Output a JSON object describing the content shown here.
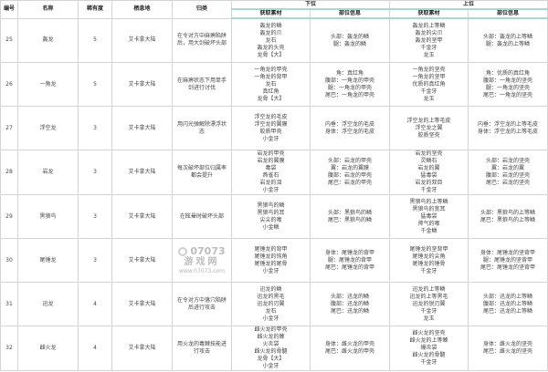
{
  "headers": {
    "id": "编号",
    "name": "名称",
    "rarity": "稀有度",
    "habitat": "栖息地",
    "capture": "归类",
    "low_rank": "下位",
    "high_rank": "上位",
    "materials": "获取素材",
    "parts": "部位信息"
  },
  "rows": [
    {
      "id": "25",
      "name": "轰龙",
      "rarity": "5",
      "habitat": "艾卡拿大陆",
      "note": "在令对方中麻痹陷阱后，用大剑破坏头部",
      "low_materials": [
        "轰龙的鳞",
        "轰龙的爪",
        "龙石",
        "轰龙的头壳",
        "龙骨【大】"
      ],
      "low_parts": [
        "头部：轰龙的鳞",
        "腿：轰龙的鳞"
      ],
      "high_materials": [
        "轰龙的上等鳞",
        "轰龙的尖爪",
        "轰龙的坚甲",
        "千金牙",
        "龙玉"
      ],
      "high_parts": [
        "头部：轰龙的上等鳞",
        "腿：轰龙的上等鳞"
      ]
    },
    {
      "id": "26",
      "name": "一角龙",
      "rarity": "5",
      "habitat": "艾卡拿大陆",
      "note": "在麻痹状态下用单手剑进行讨伐",
      "low_materials": [
        "一角龙的甲壳",
        "一角龙的背甲",
        "龙石",
        "真红角",
        "龙骨【大】"
      ],
      "low_parts": [
        "角：真红角",
        "腹部：一角龙的甲壳",
        "腿：一角龙的甲壳",
        "尾巴：一角龙的甲壳"
      ],
      "high_materials": [
        "一角龙的坚壳",
        "一角龙的坚甲",
        "优质的真红角",
        "千金牙",
        "龙玉"
      ],
      "high_parts": [
        "角：优质的真红角",
        "腹部：一角龙的坚壳",
        "腿：一角龙的坚壳",
        "尾巴：一角龙的坚壳"
      ]
    },
    {
      "id": "27",
      "name": "浮空龙",
      "rarity": "3",
      "habitat": "艾卡拿大陆",
      "note": "用闪光弹解除漂浮状态",
      "low_materials": [
        "浮空龙的毛皮",
        "浮空龙的翼膜",
        "胶质甲壳",
        "小金牙"
      ],
      "low_parts": [
        "内垂：浮空龙的毛皮",
        "身体：浮空龙的毛皮"
      ],
      "high_materials": [
        "浮空龙的上等毛皮",
        "浮空龙之翼",
        "胶质坚壳"
      ],
      "high_parts": [
        "内垂：浮空龙的上等毛皮",
        "身体：浮空龙的上等毛皮"
      ]
    },
    {
      "id": "28",
      "name": "岩龙",
      "rarity": "3",
      "habitat": "艾卡拿大陆",
      "note": "每次破坏部位归属率都会提升",
      "low_materials": [
        "岩龙的甲壳",
        "岩龙的翼膜",
        "毒袋",
        "燕雀石",
        "岩龙的泪",
        "小金牙"
      ],
      "low_parts": [
        "头部：岩龙的甲壳",
        "翼：岩龙的翼膜",
        "腹部：岩龙的甲壳",
        "尾巴：岩龙的甲壳"
      ],
      "high_materials": [
        "岩龙的坚壳",
        "灵鳞石",
        "岩龙的翼",
        "猛毒袋",
        "岩龙的双目",
        "千金牙"
      ],
      "high_parts": [
        "头部：岩龙的坚壳",
        "翼：岩龙的翼",
        "腹部：岩龙的坚壳",
        "尾巴：岩龙的坚壳"
      ]
    },
    {
      "id": "29",
      "name": "黑狼鸟",
      "rarity": "3",
      "habitat": "艾卡拿大陆",
      "note": "在眩晕时破坏头部",
      "low_materials": [
        "黑狼鸟的鳞",
        "黑狼鸟的耳",
        "尖尖的喙",
        "小金鳞"
      ],
      "low_parts": [
        "头部：黑狼鸟的鳞",
        "尾巴：黑狼鸟的鳞"
      ],
      "high_materials": [
        "黑狼鸟的上等鳞",
        "黑狼鸟的宽耳",
        "猛毒袋",
        "帅气的喙",
        "千金鳞"
      ],
      "high_parts": [
        "头部：黑狼鸟的上等鳞",
        "尾巴：黑狼鸟的上等鳞"
      ]
    },
    {
      "id": "30",
      "name": "尾锤龙",
      "rarity": "3",
      "habitat": "艾卡拿大陆",
      "note": "",
      "low_materials": [
        "尾锤龙的背甲",
        "尾锤龙的钝角",
        "尾锤龙的尾骨",
        "小金牙"
      ],
      "low_parts": [
        "身体：尾锤龙的背甲",
        "腿：尾锤龙的背甲",
        "尾巴：尾锤龙的背甲"
      ],
      "high_materials": [
        "尾锤龙的坚背甲",
        "尾锤龙的尖角",
        "尾锤龙的锤骨",
        "千金牙"
      ],
      "high_parts": [
        "身体：尾锤龙的坚背甲",
        "腿：尾锤龙的坚背甲",
        "尾巴：尾锤龙的坚背甲"
      ]
    },
    {
      "id": "31",
      "name": "迅龙",
      "rarity": "4",
      "habitat": "艾卡拿大陆",
      "note": "在令对方中落穴陷阱后进行攻击",
      "low_materials": [
        "迅龙的鳞",
        "迅龙的黑毛",
        "迅龙的刃翼",
        "龙石",
        "小金牙"
      ],
      "low_parts": [
        "头部：迅龙的鳞",
        "腹部：迅龙的鳞",
        "尾巴：迅龙的鳞"
      ],
      "high_materials": [
        "迅龙的上等鳞",
        "迅龙的上等黑毛",
        "迅龙的锐刃翼",
        "千金牙",
        "龙玉"
      ],
      "high_parts": [
        "头部：迅龙的上等鳞",
        "腹部：迅龙的上等鳞",
        "尾巴：迅龙的上等鳞"
      ]
    },
    {
      "id": "32",
      "name": "雌火龙",
      "rarity": "4",
      "habitat": "艾卡拿大陆",
      "note": "用火龙的毒棘技能进行攻击",
      "low_materials": [
        "雌火龙的甲壳",
        "雌火龙的棘",
        "火炎袋",
        "雌火龙的骨髓",
        "龙骨【大】",
        "小金牙"
      ],
      "low_parts": [
        "身体：雌火龙的甲壳",
        "尾巴：雌火龙的甲壳"
      ],
      "high_materials": [
        "雌火龙的坚壳",
        "雌火龙的上等棘",
        "爆炎袋",
        "雌火龙的骨髓",
        "千金牙"
      ],
      "high_parts": [
        "身体：雌火龙的坚壳",
        "尾巴：雌火龙的坚壳"
      ]
    }
  ],
  "watermark": {
    "brand": "07073",
    "name": "游戏网",
    "url": "www.07073.com"
  },
  "colors": {
    "grid": "#d4d4d4",
    "header_rule": "#a8d8cf",
    "text": "#444444"
  }
}
